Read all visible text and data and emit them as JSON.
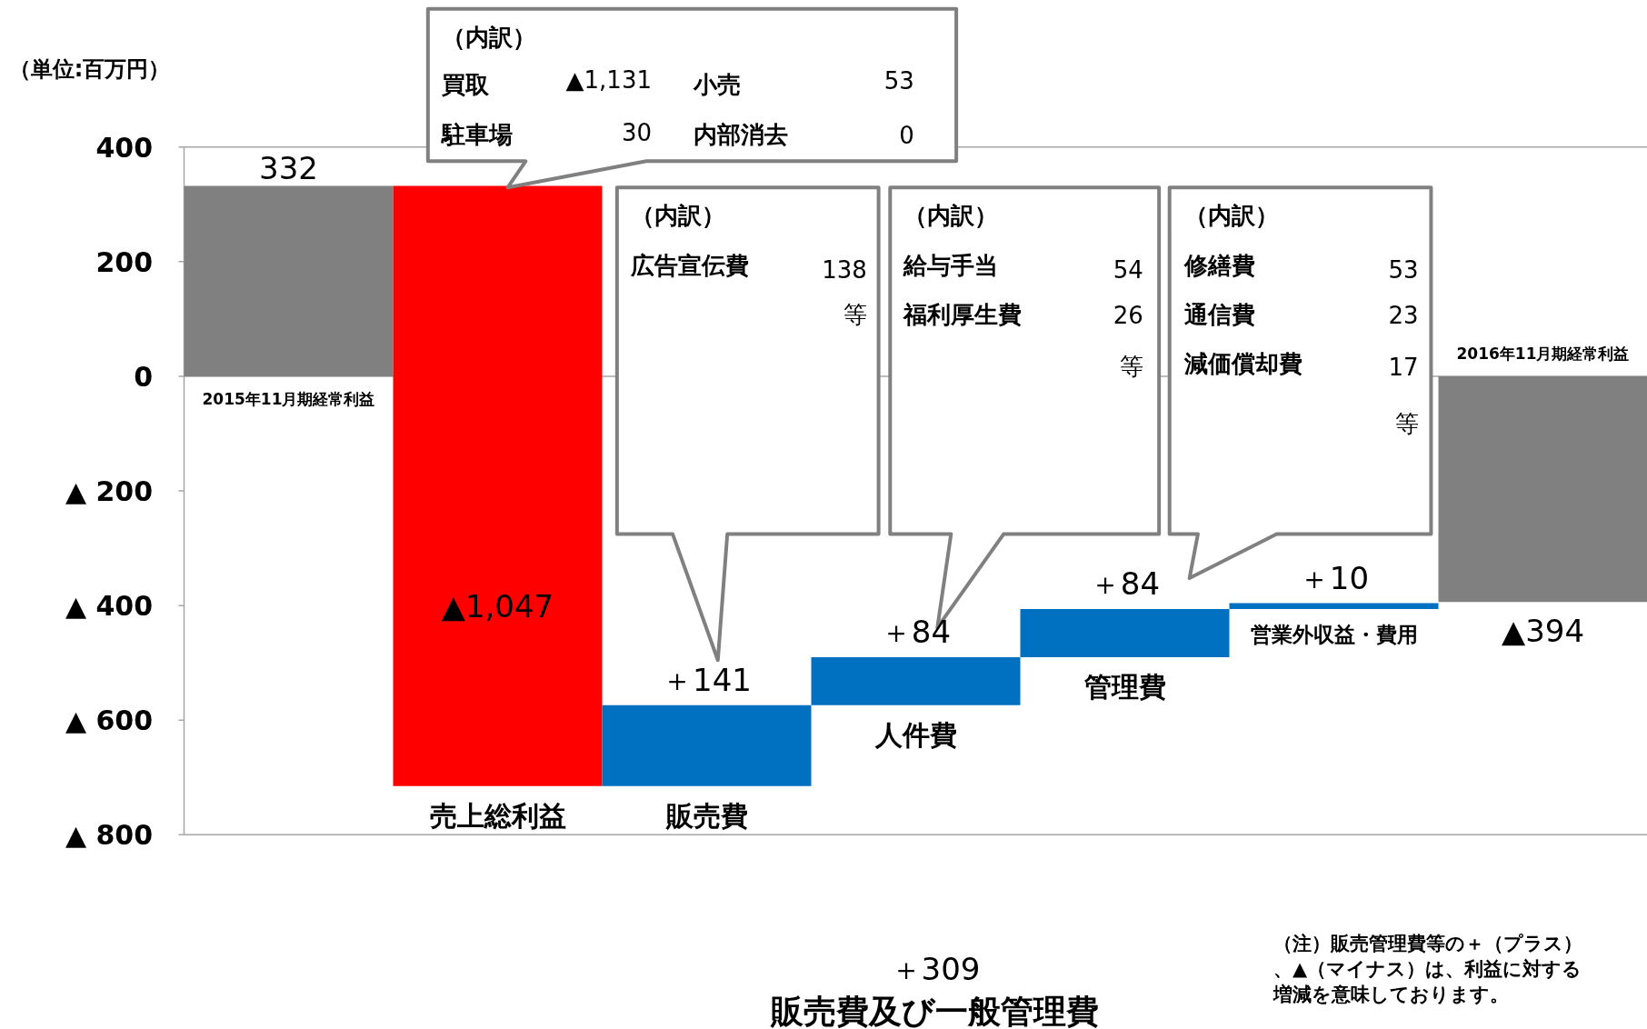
{
  "chart_data": {
    "type": "bar",
    "ylabel": "（単位:百万円）",
    "categories": [
      "2015年11月期経常利益",
      "売上総利益",
      "販売費",
      "人件費",
      "管理費",
      "営業外収益・費用",
      "2016年11月期経常利益"
    ],
    "values": [
      332,
      -1047,
      141,
      84,
      84,
      10,
      -394
    ],
    "base": [
      0,
      332,
      -715,
      -574,
      -490,
      -406,
      0
    ],
    "colors": [
      "#808080",
      "#ff0000",
      "#0070c0",
      "#0070c0",
      "#0070c0",
      "#0070c0",
      "#808080"
    ],
    "value_labels": [
      "332",
      "▲1,047",
      "＋141",
      "＋84",
      "＋84",
      "＋10",
      "▲394"
    ],
    "ylim": [
      -800,
      400
    ],
    "yticks": [
      400,
      200,
      0,
      {
        "value": -200,
        "label": "▲ 200"
      },
      {
        "value": -400,
        "label": "▲ 400"
      },
      {
        "value": -600,
        "label": "▲ 600"
      },
      {
        "value": -800,
        "label": "▲ 800"
      }
    ],
    "ref_lines": [
      {
        "axis": "y",
        "value": 0,
        "color": "#a6a6a6"
      }
    ],
    "annotations": [
      "（内訳）",
      "買取",
      "▲1,131",
      "小売",
      "53",
      "駐車場",
      "30",
      "内部消去",
      "0",
      "（内訳）",
      "広告宣伝費",
      "138",
      "等",
      "（内訳）",
      "給与手当",
      "54",
      "福利厚生費",
      "26",
      "等",
      "（内訳）",
      "修繕費",
      "53",
      "通信費",
      "23",
      "減価償却費",
      "17",
      "等",
      "＋309",
      "販売費及び一般管理費",
      "（注）販売管理費等の＋（プラス）、▲（マイナス）は、利益に対する増減を意味しております。"
    ]
  }
}
